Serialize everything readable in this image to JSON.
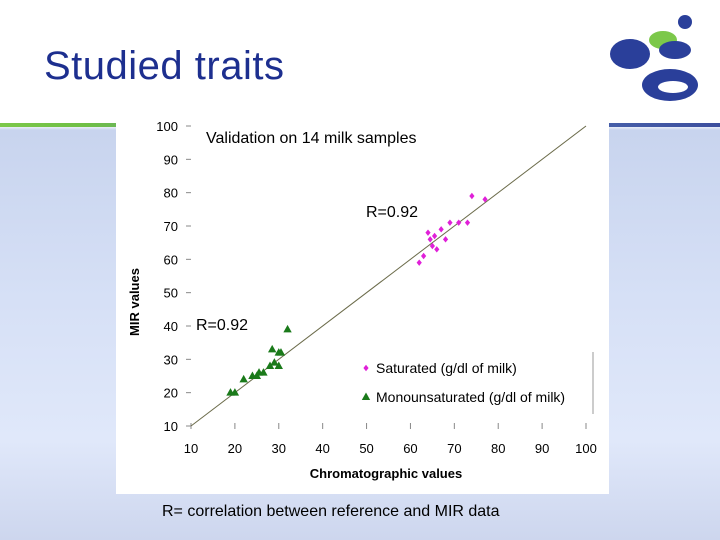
{
  "slide": {
    "title": "Studied traits",
    "caption": "R= correlation between reference and MIR data"
  },
  "colors": {
    "title": "#1d2f8f",
    "saturated": "#e020d8",
    "monounsaturated": "#1a7a1a",
    "logo_blue": "#2a3f9a",
    "logo_green": "#7cc84a"
  },
  "chart_data": {
    "type": "scatter",
    "title": "Validation on 14 milk samples",
    "xlabel": "Chromatographic values",
    "ylabel": "MIR values",
    "xlim": [
      10,
      100
    ],
    "ylim": [
      10,
      100
    ],
    "xticks": [
      10,
      20,
      30,
      40,
      50,
      60,
      70,
      80,
      90,
      100
    ],
    "yticks": [
      10,
      20,
      30,
      40,
      50,
      60,
      70,
      80,
      90,
      100
    ],
    "grid": false,
    "legend_position": "bottom-right",
    "reference_line": [
      [
        10,
        10
      ],
      [
        100,
        100
      ]
    ],
    "annotations": [
      "R=0.92",
      "R=0.92"
    ],
    "series": [
      {
        "name": "Saturated (g/dl of milk)",
        "marker": "diamond",
        "color": "#e020d8",
        "points": [
          [
            62,
            59
          ],
          [
            63,
            61
          ],
          [
            64,
            68
          ],
          [
            64.5,
            66
          ],
          [
            65,
            64
          ],
          [
            65.5,
            67
          ],
          [
            66,
            63
          ],
          [
            67,
            69
          ],
          [
            68,
            66
          ],
          [
            69,
            71
          ],
          [
            71,
            71
          ],
          [
            73,
            71
          ],
          [
            74,
            79
          ],
          [
            77,
            78
          ]
        ]
      },
      {
        "name": "Monounsaturated (g/dl of milk)",
        "marker": "triangle",
        "color": "#1a7a1a",
        "points": [
          [
            19,
            20
          ],
          [
            20,
            20
          ],
          [
            22,
            24
          ],
          [
            24,
            25
          ],
          [
            25,
            25
          ],
          [
            25.5,
            26
          ],
          [
            26.5,
            26
          ],
          [
            28,
            28
          ],
          [
            28.5,
            33
          ],
          [
            29,
            29
          ],
          [
            30,
            28
          ],
          [
            30,
            32
          ],
          [
            30.5,
            32
          ],
          [
            32,
            39
          ]
        ]
      }
    ]
  }
}
